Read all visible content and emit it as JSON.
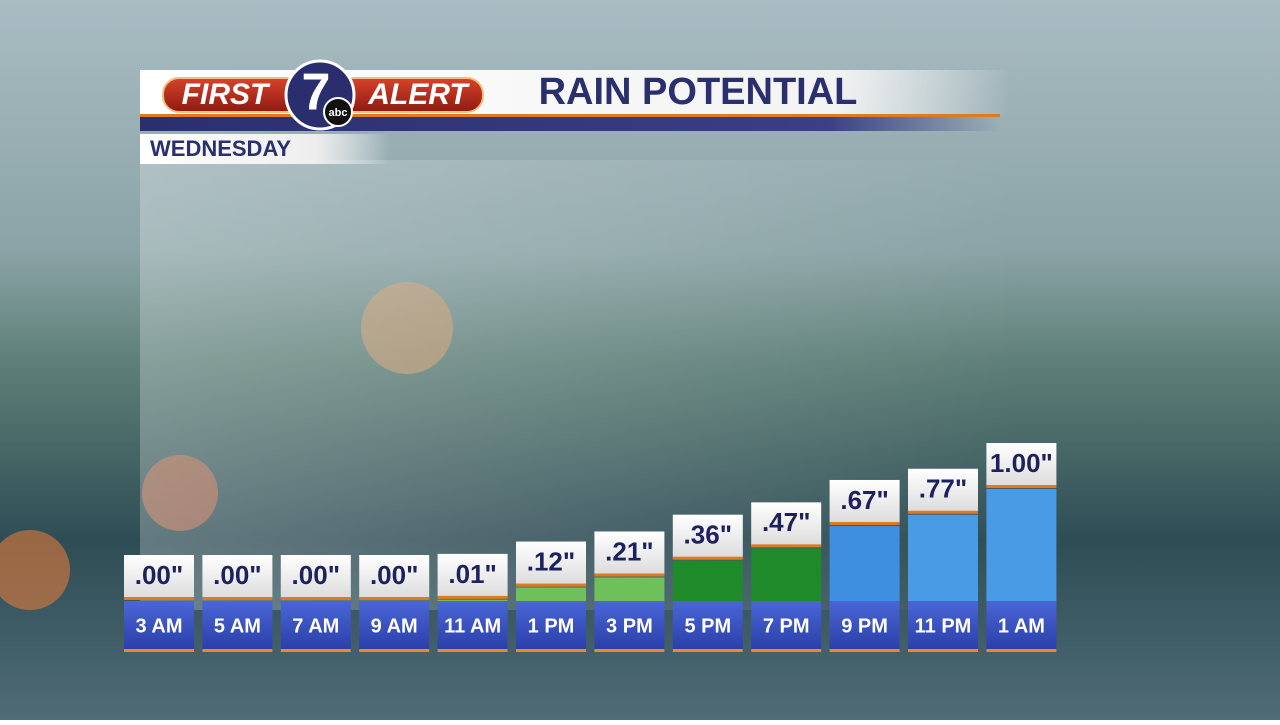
{
  "logo": {
    "left": "FIRST",
    "number": "7",
    "network": "abc",
    "right": "ALERT"
  },
  "chart_data": {
    "type": "bar",
    "title": "RAIN POTENTIAL",
    "subtitle": "WEDNESDAY",
    "categories": [
      "3 AM",
      "5 AM",
      "7 AM",
      "9 AM",
      "11 AM",
      "1 PM",
      "3 PM",
      "5 PM",
      "7 PM",
      "9 PM",
      "11 PM",
      "1 AM"
    ],
    "values": [
      0,
      0,
      0,
      0,
      0.01,
      0.12,
      0.21,
      0.36,
      0.47,
      0.67,
      0.77,
      1.0
    ],
    "value_labels": [
      ".00\"",
      ".00\"",
      ".00\"",
      ".00\"",
      ".01\"",
      ".12\"",
      ".21\"",
      ".36\"",
      ".47\"",
      ".67\"",
      ".77\"",
      "1.00\""
    ],
    "colors": [
      "#6fbf5a",
      "#6fbf5a",
      "#6fbf5a",
      "#6fbf5a",
      "#6fbf5a",
      "#6fbf5a",
      "#6fbf5a",
      "#1f8a2a",
      "#1f8a2a",
      "#3f8fe0",
      "#4a9be6",
      "#4a9be6"
    ]
  }
}
